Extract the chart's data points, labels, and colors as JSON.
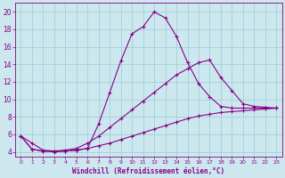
{
  "xlabel": "Windchill (Refroidissement éolien,°C)",
  "background_color": "#cce8ee",
  "grid_color": "#99ccd5",
  "line_color": "#880088",
  "xlim": [
    -0.5,
    23.5
  ],
  "ylim": [
    3.5,
    21.0
  ],
  "xticks": [
    0,
    1,
    2,
    3,
    4,
    5,
    6,
    7,
    8,
    9,
    10,
    11,
    12,
    13,
    14,
    15,
    16,
    17,
    18,
    19,
    20,
    21,
    22,
    23
  ],
  "yticks": [
    4,
    6,
    8,
    10,
    12,
    14,
    16,
    18,
    20
  ],
  "line1_x": [
    0,
    1,
    2,
    3,
    4,
    5,
    6,
    7,
    8,
    9,
    10,
    11,
    12,
    13,
    14,
    15,
    16,
    17,
    18,
    19,
    20,
    21,
    22,
    23
  ],
  "line1_y": [
    5.8,
    5.0,
    4.2,
    4.1,
    4.1,
    4.2,
    4.4,
    7.2,
    10.8,
    14.4,
    17.5,
    18.3,
    20.0,
    19.3,
    17.2,
    14.2,
    11.8,
    10.3,
    9.2,
    9.0,
    9.0,
    9.0,
    9.0,
    9.0
  ],
  "line2_x": [
    0,
    1,
    2,
    3,
    4,
    5,
    6,
    7,
    8,
    9,
    10,
    11,
    12,
    13,
    14,
    15,
    16,
    17,
    18,
    19,
    20,
    21,
    22,
    23
  ],
  "line2_y": [
    5.8,
    4.3,
    4.1,
    4.1,
    4.2,
    4.4,
    5.0,
    5.8,
    6.8,
    7.8,
    8.8,
    9.8,
    10.8,
    11.8,
    12.8,
    13.5,
    14.2,
    14.5,
    12.5,
    11.0,
    9.5,
    9.2,
    9.1,
    9.0
  ],
  "line3_x": [
    0,
    1,
    2,
    3,
    4,
    5,
    6,
    7,
    8,
    9,
    10,
    11,
    12,
    13,
    14,
    15,
    16,
    17,
    18,
    19,
    20,
    21,
    22,
    23
  ],
  "line3_y": [
    5.8,
    4.3,
    4.1,
    4.0,
    4.1,
    4.2,
    4.4,
    4.7,
    5.0,
    5.4,
    5.8,
    6.2,
    6.6,
    7.0,
    7.4,
    7.8,
    8.1,
    8.3,
    8.5,
    8.6,
    8.7,
    8.8,
    8.9,
    9.0
  ],
  "tick_fontsize_x": 4.5,
  "tick_fontsize_y": 5.5,
  "xlabel_fontsize": 5.5
}
